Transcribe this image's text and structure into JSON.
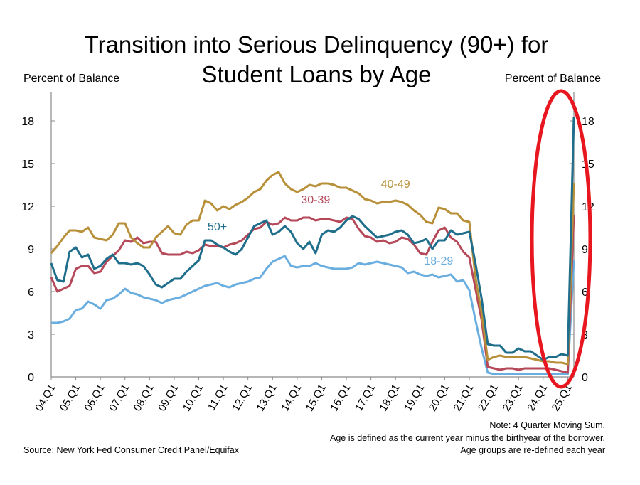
{
  "chart_data": {
    "type": "line",
    "title": "Transition into Serious Delinquency (90+) for Student Loans by Age",
    "title_lines": [
      "Transition into Serious Delinquency (90+) for",
      "Student Loans by Age"
    ],
    "ylabel_left": "Percent of Balance",
    "ylabel_right": "Percent of Balance",
    "ylim": [
      0,
      20
    ],
    "yticks": [
      0,
      3,
      6,
      9,
      12,
      15,
      18
    ],
    "x_start": "04:Q1",
    "x_end": "25:Q1",
    "xticks": [
      "04:Q1",
      "05:Q1",
      "06:Q1",
      "07:Q1",
      "08:Q1",
      "09:Q1",
      "10:Q1",
      "11:Q1",
      "12:Q1",
      "13:Q1",
      "14:Q1",
      "15:Q1",
      "16:Q1",
      "17:Q1",
      "18:Q1",
      "19:Q1",
      "20:Q1",
      "21:Q1",
      "22:Q1",
      "23:Q1",
      "24:Q1",
      "25:Q1"
    ],
    "grid": false,
    "series": [
      {
        "name": "18-29",
        "color": "#6AAEE0",
        "values": [
          3.8,
          3.8,
          3.9,
          4.1,
          4.7,
          4.8,
          5.3,
          5.1,
          4.8,
          5.4,
          5.5,
          5.8,
          6.2,
          5.9,
          5.8,
          5.6,
          5.5,
          5.4,
          5.2,
          5.4,
          5.5,
          5.6,
          5.8,
          6.0,
          6.2,
          6.4,
          6.5,
          6.6,
          6.4,
          6.3,
          6.5,
          6.6,
          6.7,
          6.9,
          7.0,
          7.6,
          8.1,
          8.3,
          8.5,
          7.8,
          7.7,
          7.8,
          7.8,
          8.0,
          7.8,
          7.7,
          7.6,
          7.6,
          7.6,
          7.7,
          8.0,
          7.9,
          8.0,
          8.1,
          8.0,
          7.9,
          7.8,
          7.7,
          7.3,
          7.4,
          7.2,
          7.1,
          7.2,
          7.0,
          7.1,
          7.2,
          6.7,
          6.8,
          6.1,
          4.0,
          2.0,
          0.3,
          0.2,
          0.2,
          0.2,
          0.2,
          0.2,
          0.2,
          0.2,
          0.2,
          0.2,
          0.2,
          0.2,
          0.2,
          0.2,
          8.2
        ]
      },
      {
        "name": "30-39",
        "color": "#B5495A",
        "values": [
          7.0,
          6.0,
          6.2,
          6.4,
          7.6,
          7.8,
          7.8,
          7.3,
          7.4,
          8.1,
          8.5,
          8.9,
          9.6,
          9.5,
          9.8,
          9.4,
          9.5,
          9.5,
          8.7,
          8.6,
          8.6,
          8.6,
          8.8,
          8.7,
          8.9,
          9.3,
          9.2,
          9.2,
          9.1,
          9.3,
          9.4,
          9.6,
          10.0,
          10.4,
          10.5,
          10.9,
          10.7,
          10.8,
          11.2,
          11.0,
          11.0,
          11.2,
          11.2,
          11.0,
          11.1,
          11.1,
          11.0,
          10.9,
          11.2,
          11.1,
          10.4,
          9.9,
          9.8,
          9.5,
          9.6,
          9.4,
          9.5,
          9.8,
          9.7,
          9.3,
          8.7,
          8.6,
          9.5,
          10.3,
          10.5,
          9.8,
          9.5,
          8.8,
          8.4,
          6.2,
          4.0,
          0.7,
          0.6,
          0.5,
          0.6,
          0.6,
          0.5,
          0.6,
          0.6,
          0.6,
          0.6,
          0.6,
          0.5,
          0.4,
          0.3,
          11.4
        ]
      },
      {
        "name": "40-49",
        "color": "#B8903A",
        "values": [
          8.7,
          9.2,
          9.8,
          10.3,
          10.3,
          10.2,
          10.5,
          9.8,
          9.7,
          9.6,
          10.0,
          10.8,
          10.8,
          9.8,
          9.4,
          9.1,
          9.1,
          9.8,
          10.2,
          10.6,
          10.1,
          10.0,
          10.7,
          11.0,
          11.0,
          12.4,
          12.2,
          11.7,
          12.0,
          11.8,
          12.1,
          12.3,
          12.6,
          13.0,
          13.2,
          13.8,
          14.2,
          14.4,
          13.6,
          13.2,
          13.0,
          13.2,
          13.5,
          13.4,
          13.6,
          13.6,
          13.5,
          13.3,
          13.3,
          13.1,
          12.9,
          12.5,
          12.4,
          12.2,
          12.3,
          12.3,
          12.4,
          12.3,
          12.1,
          11.7,
          11.4,
          10.9,
          10.8,
          11.9,
          11.8,
          11.5,
          11.5,
          11.0,
          10.9,
          7.0,
          4.5,
          1.2,
          1.4,
          1.5,
          1.4,
          1.4,
          1.4,
          1.4,
          1.3,
          1.2,
          1.1,
          1.1,
          1.0,
          1.0,
          0.9,
          13.6
        ]
      },
      {
        "name": "50+",
        "color": "#1F6E8C",
        "values": [
          8.0,
          6.8,
          6.7,
          8.8,
          9.1,
          8.4,
          8.6,
          7.6,
          7.8,
          8.3,
          8.6,
          8.0,
          8.0,
          7.9,
          8.0,
          7.8,
          7.2,
          6.5,
          6.3,
          6.6,
          6.9,
          6.9,
          7.4,
          7.8,
          8.2,
          9.6,
          9.6,
          9.3,
          9.1,
          8.8,
          8.6,
          9.0,
          9.8,
          10.6,
          10.8,
          11.0,
          10.0,
          10.2,
          10.6,
          10.2,
          9.4,
          9.0,
          9.5,
          8.7,
          10.0,
          10.3,
          10.2,
          10.5,
          11.0,
          11.3,
          11.1,
          10.6,
          10.2,
          9.8,
          9.9,
          10.0,
          10.2,
          10.3,
          10.0,
          9.4,
          9.5,
          9.7,
          9.0,
          9.6,
          9.6,
          10.3,
          10.0,
          10.1,
          10.2,
          8.0,
          5.5,
          2.3,
          2.2,
          2.2,
          1.7,
          1.7,
          2.0,
          1.8,
          1.8,
          1.5,
          1.2,
          1.4,
          1.4,
          1.6,
          1.5,
          18.3
        ]
      }
    ],
    "notes": [
      "Note: 4 Quarter Moving Sum.",
      "Age is defined as the current year minus the birthyear of the borrower.",
      "Age groups are re-defined each year"
    ],
    "source": "Source: New York Fed Consumer Credit Panel/Equifax",
    "highlight_color": "#E8161E"
  }
}
